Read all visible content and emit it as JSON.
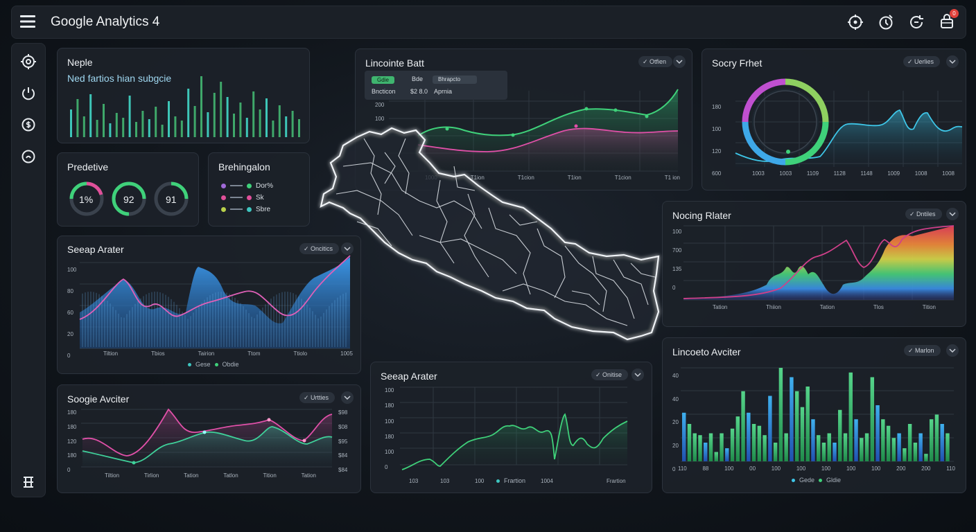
{
  "app": {
    "title": "Google Analytics 4",
    "notification_count": "0"
  },
  "colors": {
    "green": "#3fd17a",
    "pink": "#e0509a",
    "cyan": "#3ec6e8",
    "blue": "#2f7fd6",
    "bg": "#11161c",
    "card": "#1c2129"
  },
  "icons": {
    "top": [
      "gear-icon",
      "clock-icon",
      "refresh-icon",
      "notification-icon"
    ],
    "sidebar": [
      "settings-icon",
      "power-icon",
      "dollar-icon",
      "timer-icon",
      "grid-icon"
    ]
  },
  "cards": {
    "nepal_bars": {
      "title": "Neple",
      "subtitle": "Ned fartios hian subgcie"
    },
    "predictive": {
      "title": "Predetive",
      "gauges": [
        "1%",
        "92",
        "91"
      ]
    },
    "breakdown": {
      "title": "Brehingalon",
      "legend": [
        "Dor%",
        "Sk",
        "Sbre"
      ]
    },
    "line_top": {
      "title": "Lincointe Batt",
      "pill": "Otfien",
      "tooltip": {
        "tag": "Gdie",
        "label": "Bde",
        "value_label": "Bhrapcto",
        "row1": "Bncticon",
        "row2": "$2 8.0",
        "row3": "Aprnia"
      },
      "y_labels": [
        "200",
        "100"
      ],
      "x_labels": [
        "1000",
        "T1ion",
        "T1cion",
        "T1ion",
        "T1cion",
        "T1 ion"
      ]
    },
    "donut": {
      "title": "Socry Frhet",
      "pill": "Uerlies",
      "y_labels": [
        "180",
        "100",
        "120",
        "600"
      ],
      "x_labels": [
        "1003",
        "1003",
        "1109",
        "1128",
        "1148",
        "1009",
        "1008",
        "1008"
      ]
    },
    "area_left": {
      "title": "Seeap Arater",
      "pill": "Oncitics",
      "y_labels": [
        "100",
        "80",
        "60",
        "20",
        "0"
      ],
      "x_labels": [
        "Tiltion",
        "Tbios",
        "Tairion",
        "Ttom",
        "Ttiolo",
        "1005"
      ],
      "legend": [
        "Gese",
        "Obdie"
      ]
    },
    "rainbow": {
      "title": "Nocing Rlater",
      "pill": "Dntiles",
      "y_labels": [
        "100",
        "700",
        "135",
        "0"
      ],
      "x_labels": [
        "Tation",
        "Thiion",
        "Tation",
        "Tlos",
        "Tition"
      ]
    },
    "line_bottom_left": {
      "title": "Soogie Avciter",
      "pill": "Urtties",
      "y_labels": [
        "180",
        "180",
        "120",
        "180",
        "0"
      ],
      "y2_labels": [
        "$98",
        "$08",
        "$95",
        "$84",
        "$84"
      ],
      "x_labels": [
        "Tiltion",
        "Tirlion",
        "Tation",
        "Tatlon",
        "Tition",
        "Tation"
      ]
    },
    "line_bottom_mid": {
      "title": "Seeap Arater",
      "pill": "Onitise",
      "y_labels": [
        "100",
        "180",
        "100",
        "180",
        "100",
        "0"
      ],
      "x_labels": [
        "103",
        "103",
        "100",
        "1004",
        "Frartion"
      ],
      "legend": "Frartion"
    },
    "bars_right": {
      "title": "Lincoeto Avciter",
      "pill": "Marlon",
      "y_labels": [
        "40",
        "40",
        "20",
        "20",
        "0"
      ],
      "x_labels": [
        "110",
        "88",
        "100",
        "00",
        "100",
        "100",
        "100",
        "100",
        "100",
        "200",
        "200",
        "110"
      ],
      "legend": [
        "Gede",
        "Gldie"
      ]
    }
  }
}
